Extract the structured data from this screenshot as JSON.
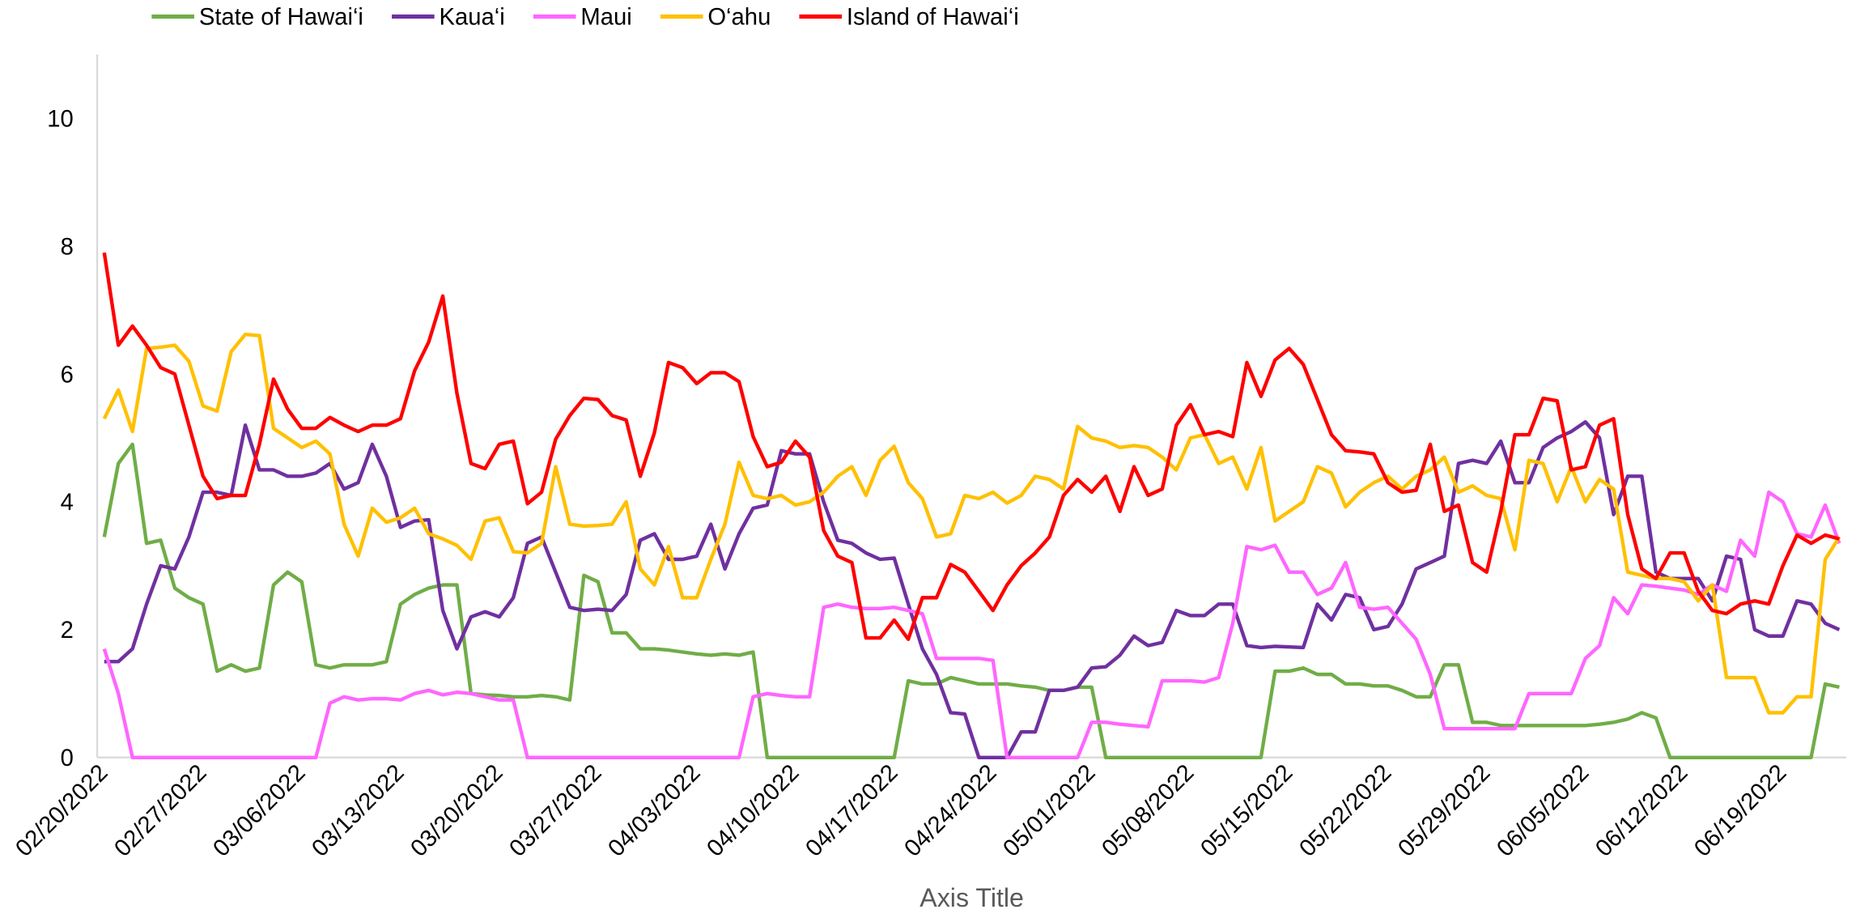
{
  "chart_data": {
    "type": "line",
    "xlabel": "Axis Title",
    "legend": "top",
    "grid": false,
    "ylim": [
      0,
      11
    ],
    "yticks": [
      0,
      2,
      4,
      6,
      8,
      10
    ],
    "categories": [
      "02/20/2022",
      null,
      null,
      null,
      null,
      null,
      null,
      "02/27/2022",
      null,
      null,
      null,
      null,
      null,
      null,
      "03/06/2022",
      null,
      null,
      null,
      null,
      null,
      null,
      "03/13/2022",
      null,
      null,
      null,
      null,
      null,
      null,
      "03/20/2022",
      null,
      null,
      null,
      null,
      null,
      null,
      "03/27/2022",
      null,
      null,
      null,
      null,
      null,
      null,
      "04/03/2022",
      null,
      null,
      null,
      null,
      null,
      null,
      "04/10/2022",
      null,
      null,
      null,
      null,
      null,
      null,
      "04/17/2022",
      null,
      null,
      null,
      null,
      null,
      null,
      "04/24/2022",
      null,
      null,
      null,
      null,
      null,
      null,
      "05/01/2022",
      null,
      null,
      null,
      null,
      null,
      null,
      "05/08/2022",
      null,
      null,
      null,
      null,
      null,
      null,
      "05/15/2022",
      null,
      null,
      null,
      null,
      null,
      null,
      "05/22/2022",
      null,
      null,
      null,
      null,
      null,
      null,
      "05/29/2022",
      null,
      null,
      null,
      null,
      null,
      null,
      "06/05/2022",
      null,
      null,
      null,
      null,
      null,
      null,
      "06/12/2022",
      null,
      null,
      null,
      null,
      null,
      null,
      "06/19/2022",
      null,
      null,
      null,
      null
    ],
    "series": [
      {
        "name": "State of Hawai‘i",
        "color": "#70ad47",
        "values": [
          3.45,
          4.6,
          4.9,
          3.35,
          3.4,
          2.65,
          2.5,
          2.4,
          1.35,
          1.45,
          1.35,
          1.4,
          2.7,
          2.9,
          2.75,
          1.45,
          1.4,
          1.45,
          1.45,
          1.45,
          1.5,
          2.4,
          2.55,
          2.65,
          2.7,
          2.7,
          1.0,
          0.98,
          0.97,
          0.95,
          0.95,
          0.97,
          0.95,
          0.9,
          2.85,
          2.75,
          1.95,
          1.95,
          1.7,
          1.7,
          1.68,
          1.65,
          1.62,
          1.6,
          1.62,
          1.6,
          1.65,
          0,
          0,
          0,
          0,
          0,
          0,
          0,
          0,
          0,
          0,
          1.2,
          1.15,
          1.15,
          1.25,
          1.2,
          1.15,
          1.15,
          1.15,
          1.12,
          1.1,
          1.05,
          1.05,
          1.1,
          1.1,
          0,
          0,
          0,
          0,
          0,
          0,
          0,
          0,
          0,
          0,
          0,
          0,
          1.35,
          1.35,
          1.4,
          1.3,
          1.3,
          1.15,
          1.15,
          1.12,
          1.12,
          1.05,
          0.95,
          0.95,
          1.45,
          1.45,
          0.55,
          0.55,
          0.5,
          0.5,
          0.5,
          0.5,
          0.5,
          0.5,
          0.5,
          0.52,
          0.55,
          0.6,
          0.7,
          0.62,
          0,
          0,
          0,
          0,
          0,
          0,
          0,
          0,
          0,
          0,
          0,
          1.15,
          1.1
        ]
      },
      {
        "name": "Kaua‘i",
        "color": "#7030a0",
        "values": [
          1.5,
          1.5,
          1.7,
          2.4,
          3.0,
          2.95,
          3.45,
          4.15,
          4.15,
          4.1,
          5.2,
          4.5,
          4.5,
          4.4,
          4.4,
          4.45,
          4.6,
          4.2,
          4.3,
          4.9,
          4.4,
          3.6,
          3.7,
          3.72,
          2.3,
          1.7,
          2.2,
          2.28,
          2.2,
          2.5,
          3.35,
          3.45,
          2.9,
          2.35,
          2.3,
          2.32,
          2.3,
          2.55,
          3.4,
          3.5,
          3.1,
          3.1,
          3.15,
          3.65,
          2.95,
          3.5,
          3.9,
          3.95,
          4.8,
          4.75,
          4.75,
          4.0,
          3.4,
          3.35,
          3.2,
          3.1,
          3.12,
          2.4,
          1.7,
          1.3,
          0.7,
          0.68,
          0,
          0,
          0,
          0.4,
          0.4,
          1.05,
          1.05,
          1.1,
          1.4,
          1.42,
          1.6,
          1.9,
          1.75,
          1.8,
          2.3,
          2.22,
          2.22,
          2.4,
          2.4,
          1.75,
          1.72,
          1.74,
          1.73,
          1.72,
          2.4,
          2.15,
          2.55,
          2.5,
          2.0,
          2.05,
          2.4,
          2.95,
          3.05,
          3.15,
          4.6,
          4.65,
          4.6,
          4.95,
          4.3,
          4.3,
          4.85,
          5.0,
          5.1,
          5.25,
          5.0,
          3.8,
          4.4,
          4.4,
          2.9,
          2.8,
          2.8,
          2.8,
          2.45,
          3.15,
          3.1,
          2.0,
          1.9,
          1.9,
          2.45,
          2.4,
          2.1,
          2.0
        ]
      },
      {
        "name": "Maui",
        "color": "#ff66ff",
        "values": [
          1.7,
          1.0,
          0,
          0,
          0,
          0,
          0,
          0,
          0,
          0,
          0,
          0,
          0,
          0,
          0,
          0,
          0.85,
          0.95,
          0.9,
          0.92,
          0.92,
          0.9,
          1.0,
          1.05,
          0.98,
          1.02,
          1.0,
          0.95,
          0.9,
          0.9,
          0,
          0,
          0,
          0,
          0,
          0,
          0,
          0,
          0,
          0,
          0,
          0,
          0,
          0,
          0,
          0,
          0.95,
          1.0,
          0.97,
          0.95,
          0.95,
          2.35,
          2.4,
          2.35,
          2.33,
          2.33,
          2.35,
          2.3,
          2.25,
          1.55,
          1.55,
          1.55,
          1.55,
          1.52,
          0,
          0,
          0,
          0,
          0,
          0,
          0.55,
          0.55,
          0.52,
          0.5,
          0.48,
          1.2,
          1.2,
          1.2,
          1.18,
          1.25,
          2.1,
          3.3,
          3.25,
          3.32,
          2.9,
          2.9,
          2.55,
          2.65,
          3.05,
          2.35,
          2.32,
          2.35,
          2.1,
          1.85,
          1.3,
          0.45,
          0.45,
          0.45,
          0.45,
          0.45,
          0.45,
          1.0,
          1.0,
          1.0,
          1.0,
          1.55,
          1.75,
          2.5,
          2.25,
          2.7,
          2.68,
          2.65,
          2.62,
          2.55,
          2.7,
          2.6,
          3.4,
          3.15,
          4.15,
          4.0,
          3.5,
          3.45,
          3.95,
          3.35
        ]
      },
      {
        "name": "O‘ahu",
        "color": "#ffc000",
        "values": [
          5.3,
          5.75,
          5.1,
          6.4,
          6.42,
          6.45,
          6.2,
          5.5,
          5.42,
          6.35,
          6.62,
          6.6,
          5.15,
          5.0,
          4.85,
          4.95,
          4.75,
          3.65,
          3.15,
          3.9,
          3.68,
          3.75,
          3.9,
          3.5,
          3.42,
          3.32,
          3.1,
          3.7,
          3.75,
          3.22,
          3.2,
          3.35,
          4.55,
          3.65,
          3.62,
          3.63,
          3.65,
          4.0,
          2.95,
          2.7,
          3.3,
          2.5,
          2.5,
          3.1,
          3.65,
          4.62,
          4.1,
          4.05,
          4.1,
          3.95,
          4.0,
          4.15,
          4.4,
          4.55,
          4.1,
          4.65,
          4.87,
          4.3,
          4.05,
          3.45,
          3.5,
          4.1,
          4.05,
          4.15,
          3.98,
          4.1,
          4.4,
          4.35,
          4.2,
          5.18,
          5.0,
          4.95,
          4.85,
          4.88,
          4.85,
          4.7,
          4.5,
          5.0,
          5.05,
          4.6,
          4.7,
          4.2,
          4.85,
          3.7,
          3.85,
          4.0,
          4.55,
          4.45,
          3.92,
          4.15,
          4.3,
          4.4,
          4.2,
          4.4,
          4.5,
          4.7,
          4.15,
          4.25,
          4.1,
          4.05,
          3.25,
          4.65,
          4.6,
          4.0,
          4.55,
          4.0,
          4.35,
          4.2,
          2.9,
          2.85,
          2.8,
          2.8,
          2.75,
          2.45,
          2.7,
          1.25,
          1.25,
          1.25,
          0.7,
          0.7,
          0.95,
          0.95,
          3.1,
          3.45
        ]
      },
      {
        "name": "Island of Hawai‘i",
        "color": "#ff0000",
        "values": [
          7.9,
          6.45,
          6.75,
          6.45,
          6.1,
          6.0,
          5.2,
          4.4,
          4.05,
          4.1,
          4.1,
          4.9,
          5.92,
          5.45,
          5.15,
          5.15,
          5.32,
          5.2,
          5.1,
          5.2,
          5.2,
          5.3,
          6.05,
          6.5,
          7.22,
          5.7,
          4.6,
          4.52,
          4.9,
          4.95,
          3.97,
          4.15,
          4.98,
          5.35,
          5.62,
          5.6,
          5.35,
          5.28,
          4.4,
          5.08,
          6.18,
          6.1,
          5.85,
          6.02,
          6.02,
          5.88,
          5.02,
          4.55,
          4.62,
          4.95,
          4.7,
          3.55,
          3.15,
          3.05,
          1.87,
          1.87,
          2.15,
          1.85,
          2.5,
          2.5,
          3.02,
          2.9,
          2.6,
          2.3,
          2.7,
          3.0,
          3.2,
          3.45,
          4.1,
          4.35,
          4.15,
          4.4,
          3.85,
          4.55,
          4.1,
          4.2,
          5.2,
          5.52,
          5.05,
          5.1,
          5.02,
          6.18,
          5.65,
          6.22,
          6.4,
          6.15,
          5.6,
          5.05,
          4.8,
          4.78,
          4.75,
          4.3,
          4.15,
          4.18,
          4.9,
          3.85,
          3.95,
          3.05,
          2.9,
          3.85,
          5.05,
          5.05,
          5.62,
          5.58,
          4.5,
          4.55,
          5.2,
          5.3,
          3.8,
          2.95,
          2.8,
          3.2,
          3.2,
          2.6,
          2.3,
          2.25,
          2.4,
          2.45,
          2.4,
          3.0,
          3.48,
          3.35,
          3.48,
          3.42
        ]
      }
    ]
  }
}
